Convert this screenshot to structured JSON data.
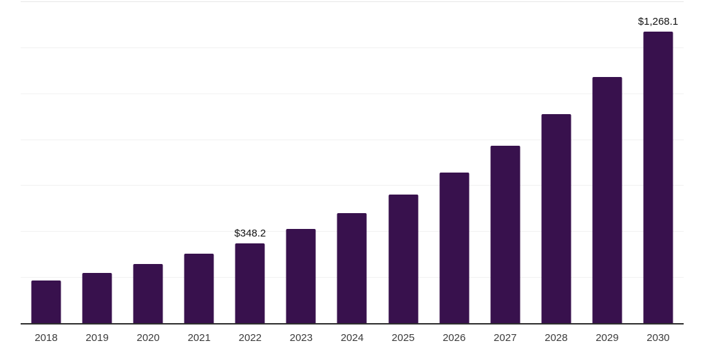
{
  "chart": {
    "background": "#ffffff",
    "bar_color": "#38114d",
    "grid_color": "#f1f1f1",
    "grid_top_color": "#e6e6e6",
    "axis_color": "#2e2e2e",
    "tick_label_color": "#3b3b3b",
    "data_label_color": "#121212"
  },
  "chart_data": {
    "type": "bar",
    "categories": [
      "2018",
      "2019",
      "2020",
      "2021",
      "2022",
      "2023",
      "2024",
      "2025",
      "2026",
      "2027",
      "2028",
      "2029",
      "2030"
    ],
    "values": [
      186.4,
      219.2,
      257.9,
      302.7,
      348.2,
      410.0,
      478.6,
      559.1,
      654.5,
      770.8,
      908.0,
      1072.0,
      1268.1
    ],
    "data_labels": [
      "",
      "",
      "",
      "",
      "$348.2",
      "",
      "",
      "",
      "",
      "",
      "",
      "",
      "$1,268.1"
    ],
    "xlabel": "",
    "ylabel": "",
    "ylim": [
      0,
      1400
    ],
    "grid_step": 200,
    "grid": true,
    "legend": false,
    "y_axis_labels_visible": false
  }
}
